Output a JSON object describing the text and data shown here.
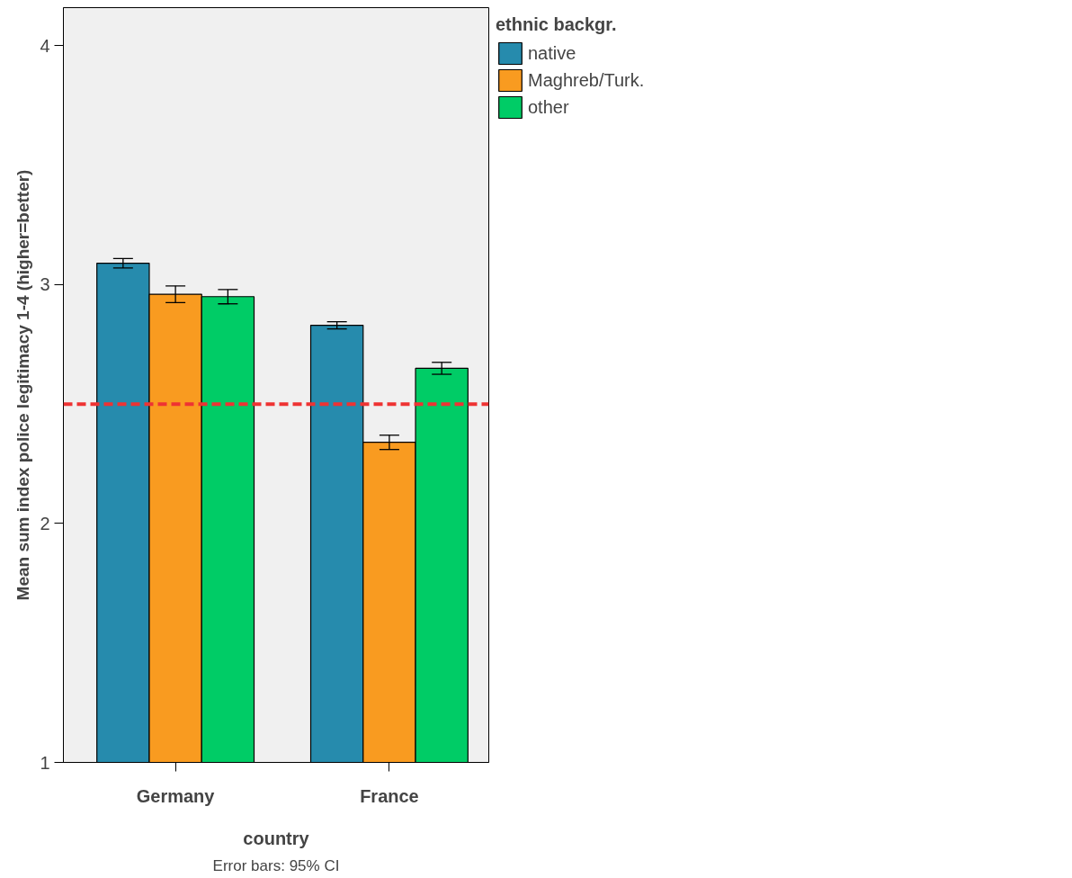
{
  "chart_data": {
    "type": "bar",
    "xlabel": "country",
    "ylabel": "Mean sum index police legitimacy 1-4 (higher=better)",
    "legend_title": "ethnic backgr.",
    "categories": [
      "Germany",
      "France"
    ],
    "series": [
      {
        "name": "native",
        "color": "#268bad",
        "values": [
          3.09,
          2.83
        ],
        "errors": [
          0.02,
          0.015
        ]
      },
      {
        "name": "Maghreb/Turk.",
        "color": "#f99b20",
        "values": [
          2.96,
          2.34
        ],
        "errors": [
          0.035,
          0.03
        ]
      },
      {
        "name": "other",
        "color": "#00cc66",
        "values": [
          2.95,
          2.65
        ],
        "errors": [
          0.03,
          0.025
        ]
      }
    ],
    "ylim": [
      1,
      4.16
    ],
    "yticks": [
      1,
      2,
      3,
      4
    ],
    "grid": false,
    "legend": "top right",
    "ref_lines": [
      {
        "axis": "y",
        "value": 2.5,
        "color": "#ee3333",
        "line_style": "dashed"
      }
    ],
    "annotations": [
      "Error bars: 95% CI"
    ]
  }
}
